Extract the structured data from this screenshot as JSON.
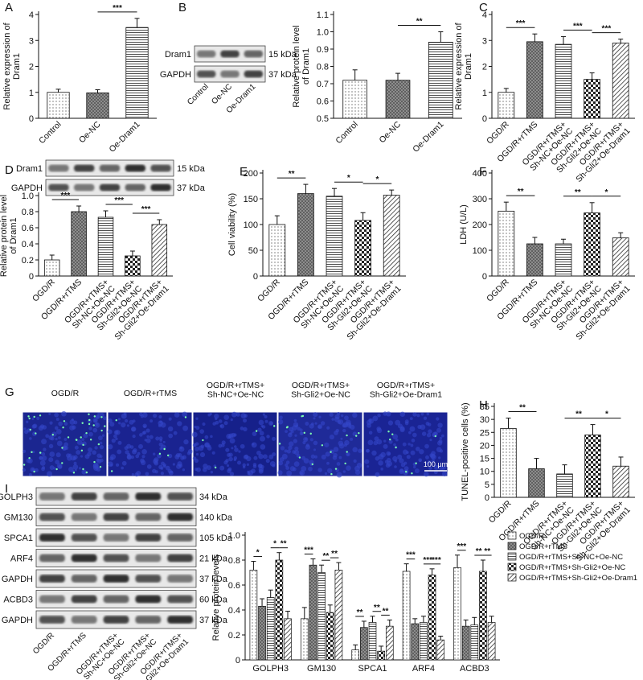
{
  "figure": {
    "blots": [
      {
        "panel": "B",
        "rows": [
          {
            "protein": "Dram1",
            "size": "15 kDa"
          },
          {
            "protein": "GAPDH",
            "size": "37 kDa"
          }
        ],
        "lanes": [
          "Control",
          "Oe-NC",
          "Oe-Dram1"
        ]
      },
      {
        "panel": "D",
        "rows": [
          {
            "protein": "Dram1",
            "size": "15 kDa"
          },
          {
            "protein": "GAPDH",
            "size": "37 kDa"
          }
        ]
      },
      {
        "panel": "I",
        "rows": [
          {
            "protein": "GOLPH3",
            "size": "34 kDa"
          },
          {
            "protein": "GM130",
            "size": "140 kDa"
          },
          {
            "protein": "SPCA1",
            "size": "105 kDa"
          },
          {
            "protein": "ARF4",
            "size": "21 kDa"
          },
          {
            "protein": "GAPDH",
            "size": "37 kDa"
          },
          {
            "protein": "ACBD3",
            "size": "60 kDa"
          },
          {
            "protein": "GAPDH",
            "size": "37 kDa"
          }
        ],
        "lanes": [
          "OGD/R",
          "OGD/R+rTMS",
          "OGD/R+rTMS+\nSh-NC+Oe-NC",
          "OGD/R+rTMS+\nSh-Gli2+Oe-NC",
          "OGD/R+rTMS+\nSh-Gli2+Oe-Dram1"
        ]
      }
    ],
    "microscopy": {
      "panel": "G",
      "images": [
        "OGD/R",
        "OGD/R+rTMS",
        "OGD/R+rTMS+\nSh-NC+Oe-NC",
        "OGD/R+rTMS+\nSh-Gli2+Oe-NC",
        "OGD/R+rTMS+\nSh-Gli2+Oe-Dram1"
      ],
      "scale_bar": "100 μm"
    }
  },
  "chart_data": [
    {
      "type": "bar",
      "panel": "A",
      "ylabel": "Relative expression of\nDram1",
      "categories": [
        "Control",
        "Oe-NC",
        "Oe-Dram1"
      ],
      "values": [
        1.0,
        0.98,
        3.5
      ],
      "errors": [
        0.12,
        0.12,
        0.35
      ],
      "patterns": [
        "dots",
        "crosshatch",
        "hstripes"
      ],
      "ylim": [
        0,
        4
      ],
      "yticks": [
        0,
        1,
        2,
        3,
        4
      ],
      "significance": [
        {
          "label": "***",
          "between": [
            "Oe-NC",
            "Oe-Dram1"
          ]
        }
      ]
    },
    {
      "type": "bar",
      "ylabel": "Relative protein level\nof Dram1",
      "categories": [
        "Control",
        "Oe-NC",
        "Oe-Dram1"
      ],
      "values": [
        0.72,
        0.72,
        0.94
      ],
      "errors": [
        0.06,
        0.04,
        0.06
      ],
      "patterns": [
        "dots",
        "crosshatch",
        "hstripes"
      ],
      "ylim": [
        0.5,
        1.1
      ],
      "yticks": [
        0.5,
        0.6,
        0.7,
        0.8,
        0.9,
        {
          "value": 1,
          "label": "1.0"
        },
        1.1
      ],
      "significance": [
        {
          "label": "**",
          "between": [
            "Oe-NC",
            "Oe-Dram1"
          ]
        }
      ]
    },
    {
      "type": "bar",
      "panel": "C",
      "ylabel": "Relative expression of\nDram1",
      "categories": [
        "OGD/R",
        "OGD/R+rTMS",
        "OGD/R+rTMS+\nSh-NC+Oe-NC",
        "OGD/R+rTMS+\nSh-Gli2+Oe-NC",
        "OGD/R+rTMS+\nSh-Gli2+Oe-Dram1"
      ],
      "values": [
        1.0,
        2.95,
        2.85,
        1.5,
        2.9
      ],
      "errors": [
        0.15,
        0.3,
        0.3,
        0.25,
        0.15
      ],
      "patterns": [
        "dots",
        "crosshatch",
        "hstripes",
        "checker",
        "diagonal"
      ],
      "ylim": [
        0,
        4
      ],
      "yticks": [
        0,
        1,
        2,
        3,
        4
      ],
      "significance": [
        {
          "label": "***",
          "between": [
            "OGD/R",
            "OGD/R+rTMS"
          ]
        },
        {
          "label": "***",
          "between": [
            "OGD/R+rTMS+\nSh-NC+Oe-NC",
            "OGD/R+rTMS+\nSh-Gli2+Oe-NC"
          ]
        },
        {
          "label": "***",
          "between": [
            "OGD/R+rTMS+\nSh-Gli2+Oe-NC",
            "OGD/R+rTMS+\nSh-Gli2+Oe-Dram1"
          ]
        }
      ]
    },
    {
      "type": "bar",
      "ylabel": "Relative protein level\nof Dram1",
      "categories": [
        "OGD/R",
        "OGD/R+rTMS",
        "OGD/R+rTMS+\nSh-NC+Oe-NC",
        "OGD/R+rTMS+\nSh-Gli2+Oe-NC",
        "OGD/R+rTMS+\nSh-Gli2+Oe-Dram1"
      ],
      "values": [
        0.2,
        0.8,
        0.73,
        0.25,
        0.64
      ],
      "errors": [
        0.06,
        0.07,
        0.08,
        0.06,
        0.06
      ],
      "patterns": [
        "dots",
        "crosshatch",
        "hstripes",
        "checker",
        "diagonal"
      ],
      "ylim": [
        0,
        1
      ],
      "yticks": [
        0,
        0.2,
        0.4,
        0.6,
        0.8,
        {
          "value": 1,
          "label": "1.0"
        }
      ],
      "significance": [
        {
          "label": "***",
          "between": [
            "OGD/R",
            "OGD/R+rTMS"
          ]
        },
        {
          "label": "***",
          "between": [
            "OGD/R+rTMS+\nSh-NC+Oe-NC",
            "OGD/R+rTMS+\nSh-Gli2+Oe-NC"
          ]
        },
        {
          "label": "***",
          "between": [
            "OGD/R+rTMS+\nSh-Gli2+Oe-NC",
            "OGD/R+rTMS+\nSh-Gli2+Oe-Dram1"
          ]
        }
      ]
    },
    {
      "type": "bar",
      "panel": "E",
      "ylabel": "Cell viability (%)",
      "categories": [
        "OGD/R",
        "OGD/R+rTMS",
        "OGD/R+rTMS+\nSh-NC+Oe-NC",
        "OGD/R+rTMS+\nSh-Gli2+Oe-NC",
        "OGD/R+rTMS+\nSh-Gli2+Oe-Dram1"
      ],
      "values": [
        100,
        160,
        155,
        108,
        157
      ],
      "errors": [
        17,
        18,
        15,
        15,
        10
      ],
      "patterns": [
        "dots",
        "crosshatch",
        "hstripes",
        "checker",
        "diagonal"
      ],
      "ylim": [
        0,
        200
      ],
      "yticks": [
        0,
        50,
        100,
        150,
        200
      ],
      "significance": [
        {
          "label": "**",
          "between": [
            "OGD/R",
            "OGD/R+rTMS"
          ]
        },
        {
          "label": "*",
          "between": [
            "OGD/R+rTMS+\nSh-NC+Oe-NC",
            "OGD/R+rTMS+\nSh-Gli2+Oe-NC"
          ]
        },
        {
          "label": "*",
          "between": [
            "OGD/R+rTMS+\nSh-Gli2+Oe-NC",
            "OGD/R+rTMS+\nSh-Gli2+Oe-Dram1"
          ]
        }
      ]
    },
    {
      "type": "bar",
      "panel": "F",
      "ylabel": "LDH (U/L)",
      "categories": [
        "OGD/R",
        "OGD/R+rTMS",
        "OGD/R+rTMS+\nSh-NC+Oe-NC",
        "OGD/R+rTMS+\nSh-Gli2+Oe-NC",
        "OGD/R+rTMS+\nSh-Gli2+Oe-Dram1"
      ],
      "values": [
        252,
        125,
        125,
        245,
        148
      ],
      "errors": [
        35,
        25,
        18,
        40,
        20
      ],
      "patterns": [
        "dots",
        "crosshatch",
        "hstripes",
        "checker",
        "diagonal"
      ],
      "ylim": [
        0,
        400
      ],
      "yticks": [
        0,
        100,
        200,
        300,
        400
      ],
      "significance": [
        {
          "label": "**",
          "between": [
            "OGD/R",
            "OGD/R+rTMS"
          ]
        },
        {
          "label": "**",
          "between": [
            "OGD/R+rTMS+\nSh-NC+Oe-NC",
            "OGD/R+rTMS+\nSh-Gli2+Oe-NC"
          ]
        },
        {
          "label": "*",
          "between": [
            "OGD/R+rTMS+\nSh-Gli2+Oe-NC",
            "OGD/R+rTMS+\nSh-Gli2+Oe-Dram1"
          ]
        }
      ]
    },
    {
      "type": "bar",
      "panel": "H",
      "ylabel": "TUNEL-positive cells (%)",
      "categories": [
        "OGD/R",
        "OGD/R+rTMS",
        "OGD/R+rTMS+\nSh-NC+Oe-NC",
        "OGD/R+rTMS+\nSh-Gli2+Oe-NC",
        "OGD/R+rTMS+\nSh-Gli2+Oe-Dram1"
      ],
      "values": [
        26.5,
        11,
        9,
        24,
        12
      ],
      "errors": [
        4,
        4,
        3.5,
        4,
        3.5
      ],
      "patterns": [
        "dots",
        "crosshatch",
        "hstripes",
        "checker",
        "diagonal"
      ],
      "ylim": [
        0,
        35
      ],
      "yticks": [
        0,
        5,
        10,
        15,
        20,
        25,
        30,
        35
      ],
      "significance": [
        {
          "label": "**",
          "between": [
            "OGD/R",
            "OGD/R+rTMS"
          ]
        },
        {
          "label": "**",
          "between": [
            "OGD/R+rTMS+\nSh-NC+Oe-NC",
            "OGD/R+rTMS+\nSh-Gli2+Oe-NC"
          ]
        },
        {
          "label": "*",
          "between": [
            "OGD/R+rTMS+\nSh-Gli2+Oe-NC",
            "OGD/R+rTMS+\nSh-Gli2+Oe-Dram1"
          ]
        }
      ]
    },
    {
      "type": "grouped_bar",
      "ylabel": "Relative protein levels",
      "legend": "right",
      "categories": [
        "GOLPH3",
        "GM130",
        "SPCA1",
        "ARF4",
        "ACBD3"
      ],
      "series": [
        {
          "name": "OGD/R",
          "pattern": "dots",
          "values": [
            0.72,
            0.33,
            0.08,
            0.71,
            0.74
          ],
          "errors": [
            0.07,
            0.09,
            0.04,
            0.06,
            0.1
          ]
        },
        {
          "name": "OGD/R+rTMS",
          "pattern": "crosshatch",
          "values": [
            0.43,
            0.76,
            0.26,
            0.29,
            0.27
          ],
          "errors": [
            0.06,
            0.05,
            0.05,
            0.04,
            0.05
          ]
        },
        {
          "name": "OGD/R+rTMS+Sh-NC+Oe-NC",
          "pattern": "hstripes",
          "values": [
            0.5,
            0.7,
            0.3,
            0.3,
            0.28
          ],
          "errors": [
            0.06,
            0.06,
            0.05,
            0.05,
            0.06
          ]
        },
        {
          "name": "OGD/R+rTMS+Sh-Gli2+Oe-NC",
          "pattern": "checker",
          "values": [
            0.8,
            0.38,
            0.07,
            0.68,
            0.71
          ],
          "errors": [
            0.06,
            0.06,
            0.04,
            0.05,
            0.09
          ]
        },
        {
          "name": "OGD/R+rTMS+Sh-Gli2+Oe-Dram1",
          "pattern": "diagonal",
          "values": [
            0.33,
            0.72,
            0.27,
            0.16,
            0.3
          ],
          "errors": [
            0.06,
            0.06,
            0.05,
            0.03,
            0.05
          ]
        }
      ],
      "ylim": [
        0,
        1
      ],
      "yticks": [
        0,
        0.2,
        0.4,
        0.6,
        0.8,
        {
          "value": 1,
          "label": "1.0"
        }
      ],
      "significance": [
        {
          "category": "GOLPH3",
          "label": "*",
          "between": [
            "OGD/R",
            "OGD/R+rTMS"
          ]
        },
        {
          "category": "GOLPH3",
          "label": "*",
          "between": [
            "OGD/R+rTMS+Sh-NC+Oe-NC",
            "OGD/R+rTMS+Sh-Gli2+Oe-NC"
          ]
        },
        {
          "category": "GOLPH3",
          "label": "**",
          "between": [
            "OGD/R+rTMS+Sh-Gli2+Oe-NC",
            "OGD/R+rTMS+Sh-Gli2+Oe-Dram1"
          ]
        },
        {
          "category": "GM130",
          "label": "***",
          "between": [
            "OGD/R",
            "OGD/R+rTMS"
          ]
        },
        {
          "category": "GM130",
          "label": "**",
          "between": [
            "OGD/R+rTMS+Sh-NC+Oe-NC",
            "OGD/R+rTMS+Sh-Gli2+Oe-NC"
          ]
        },
        {
          "category": "GM130",
          "label": "**",
          "between": [
            "OGD/R+rTMS+Sh-Gli2+Oe-NC",
            "OGD/R+rTMS+Sh-Gli2+Oe-Dram1"
          ]
        },
        {
          "category": "SPCA1",
          "label": "**",
          "between": [
            "OGD/R",
            "OGD/R+rTMS"
          ]
        },
        {
          "category": "SPCA1",
          "label": "**",
          "between": [
            "OGD/R+rTMS+Sh-NC+Oe-NC",
            "OGD/R+rTMS+Sh-Gli2+Oe-NC"
          ]
        },
        {
          "category": "SPCA1",
          "label": "**",
          "between": [
            "OGD/R+rTMS+Sh-Gli2+Oe-NC",
            "OGD/R+rTMS+Sh-Gli2+Oe-Dram1"
          ]
        },
        {
          "category": "ARF4",
          "label": "***",
          "between": [
            "OGD/R",
            "OGD/R+rTMS"
          ]
        },
        {
          "category": "ARF4",
          "label": "***",
          "between": [
            "OGD/R+rTMS+Sh-NC+Oe-NC",
            "OGD/R+rTMS+Sh-Gli2+Oe-NC"
          ]
        },
        {
          "category": "ARF4",
          "label": "***",
          "between": [
            "OGD/R+rTMS+Sh-Gli2+Oe-NC",
            "OGD/R+rTMS+Sh-Gli2+Oe-Dram1"
          ]
        },
        {
          "category": "ACBD3",
          "label": "***",
          "between": [
            "OGD/R",
            "OGD/R+rTMS"
          ]
        },
        {
          "category": "ACBD3",
          "label": "**",
          "between": [
            "OGD/R+rTMS+Sh-NC+Oe-NC",
            "OGD/R+rTMS+Sh-Gli2+Oe-NC"
          ]
        },
        {
          "category": "ACBD3",
          "label": "**",
          "between": [
            "OGD/R+rTMS+Sh-Gli2+Oe-NC",
            "OGD/R+rTMS+Sh-Gli2+Oe-Dram1"
          ]
        }
      ]
    }
  ]
}
